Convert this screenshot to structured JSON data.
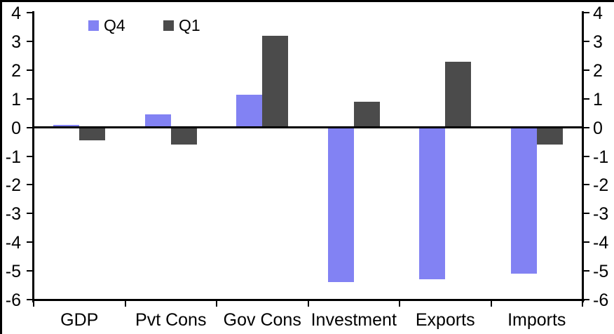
{
  "chart_data": {
    "type": "bar",
    "title": "",
    "xlabel": "",
    "ylabel": "",
    "categories": [
      "GDP",
      "Pvt Cons",
      "Gov Cons",
      "Investment",
      "Exports",
      "Imports"
    ],
    "series": [
      {
        "name": "Q4",
        "color": "#8282F3",
        "values": [
          0.1,
          0.45,
          1.15,
          -5.4,
          -5.3,
          -5.1
        ]
      },
      {
        "name": "Q1",
        "color": "#4B4B4B",
        "values": [
          -0.45,
          -0.6,
          3.2,
          0.9,
          2.3,
          -0.6
        ]
      }
    ],
    "ylim": [
      -6,
      4
    ],
    "yticks": [
      4,
      3,
      2,
      1,
      0,
      -1,
      -2,
      -3,
      -4,
      -5,
      -6
    ],
    "grid": false,
    "legend_position": "top-inside",
    "dual_y_axis_labels": true,
    "axis_color": "#000000",
    "background_color": "#FFFFFF"
  }
}
